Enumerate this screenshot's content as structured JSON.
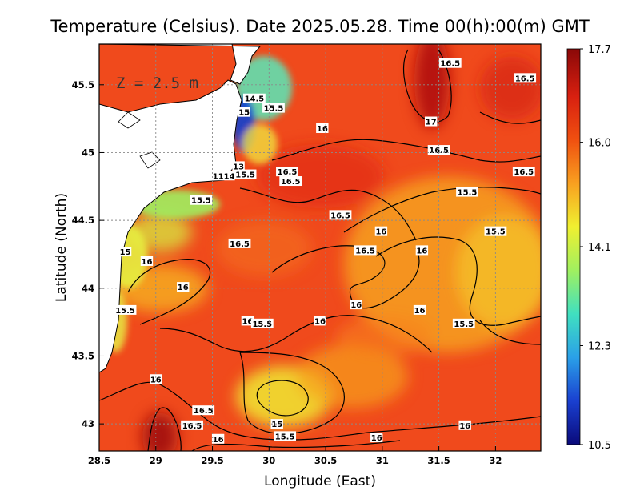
{
  "chart_data": {
    "type": "heatmap",
    "title": "Temperature (Celsius). Date 2025.05.28. Time 00(h):00(m) GMT",
    "xlabel": "Longitude (East)",
    "ylabel": "Latitude (North)",
    "xlim": [
      28.5,
      32.4
    ],
    "ylim": [
      42.8,
      45.8
    ],
    "x_ticks": [
      "28.5",
      "29",
      "29.5",
      "30",
      "30.5",
      "31",
      "31.5",
      "32"
    ],
    "y_ticks": [
      "43",
      "43.5",
      "44",
      "44.5",
      "45",
      "45.5"
    ],
    "grid": true,
    "depth_annotation": "Z = 2.5 m",
    "colorbar": {
      "min": 10.5,
      "max": 17.7,
      "tick_labels": [
        "17.7",
        "16.0",
        "14.1",
        "12.3",
        "10.5"
      ],
      "tick_values": [
        17.7,
        16.0,
        14.1,
        12.3,
        10.5
      ],
      "colors": [
        "#0a0a7a",
        "#1a40d0",
        "#2aa0e8",
        "#40e0c0",
        "#a0f060",
        "#f0f030",
        "#f8a020",
        "#f05010",
        "#d82010",
        "#8a0808"
      ]
    },
    "contour_labels": [
      {
        "text": "16.5",
        "lon": 31.6,
        "lat": 45.66
      },
      {
        "text": "16.5",
        "lon": 32.26,
        "lat": 45.55
      },
      {
        "text": "14.5",
        "lon": 29.87,
        "lat": 45.4
      },
      {
        "text": "15.5",
        "lon": 30.04,
        "lat": 45.33
      },
      {
        "text": "15",
        "lon": 29.78,
        "lat": 45.3
      },
      {
        "text": "17",
        "lon": 31.43,
        "lat": 45.23
      },
      {
        "text": "16",
        "lon": 30.47,
        "lat": 45.18
      },
      {
        "text": "16.5",
        "lon": 31.5,
        "lat": 45.02
      },
      {
        "text": "13",
        "lon": 29.73,
        "lat": 44.9
      },
      {
        "text": "16.5",
        "lon": 30.16,
        "lat": 44.86
      },
      {
        "text": "16.5",
        "lon": 32.25,
        "lat": 44.86
      },
      {
        "text": "1114",
        "lon": 29.6,
        "lat": 44.83
      },
      {
        "text": "15.5",
        "lon": 29.79,
        "lat": 44.84
      },
      {
        "text": "16.5",
        "lon": 30.19,
        "lat": 44.79
      },
      {
        "text": "15.5",
        "lon": 31.75,
        "lat": 44.71
      },
      {
        "text": "15.5",
        "lon": 29.4,
        "lat": 44.65
      },
      {
        "text": "16.5",
        "lon": 30.63,
        "lat": 44.54
      },
      {
        "text": "16",
        "lon": 30.99,
        "lat": 44.42
      },
      {
        "text": "15.5",
        "lon": 32.0,
        "lat": 44.42
      },
      {
        "text": "16.5",
        "lon": 29.74,
        "lat": 44.33
      },
      {
        "text": "16.5",
        "lon": 30.85,
        "lat": 44.28
      },
      {
        "text": "16",
        "lon": 31.35,
        "lat": 44.28
      },
      {
        "text": "15",
        "lon": 28.73,
        "lat": 44.27
      },
      {
        "text": "16",
        "lon": 28.92,
        "lat": 44.2
      },
      {
        "text": "16",
        "lon": 29.24,
        "lat": 44.01
      },
      {
        "text": "16",
        "lon": 30.77,
        "lat": 43.88
      },
      {
        "text": "15.5",
        "lon": 28.73,
        "lat": 43.84
      },
      {
        "text": "16",
        "lon": 31.33,
        "lat": 43.84
      },
      {
        "text": "16",
        "lon": 29.81,
        "lat": 43.76
      },
      {
        "text": "15.5",
        "lon": 29.94,
        "lat": 43.74
      },
      {
        "text": "16",
        "lon": 30.45,
        "lat": 43.76
      },
      {
        "text": "15.5",
        "lon": 31.72,
        "lat": 43.74
      },
      {
        "text": "16",
        "lon": 29.0,
        "lat": 43.33
      },
      {
        "text": "16.5",
        "lon": 29.42,
        "lat": 43.1
      },
      {
        "text": "15",
        "lon": 30.07,
        "lat": 43.0
      },
      {
        "text": "16.5",
        "lon": 29.32,
        "lat": 42.99
      },
      {
        "text": "16",
        "lon": 31.73,
        "lat": 42.99
      },
      {
        "text": "15.5",
        "lon": 30.14,
        "lat": 42.91
      },
      {
        "text": "16",
        "lon": 29.55,
        "lat": 42.89
      },
      {
        "text": "16",
        "lon": 30.95,
        "lat": 42.9
      }
    ]
  }
}
